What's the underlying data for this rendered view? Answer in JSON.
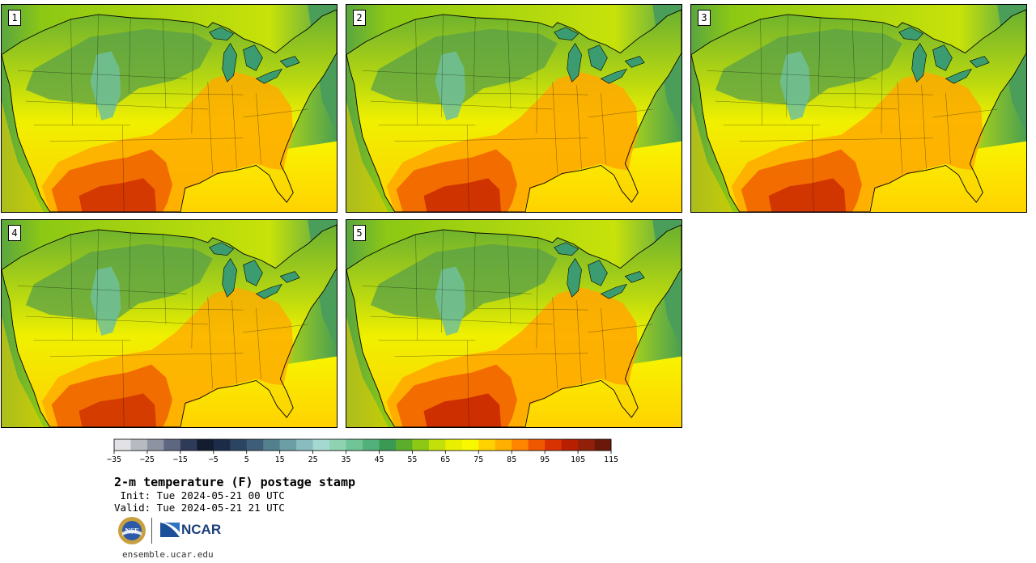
{
  "panels": [
    {
      "label": "1",
      "variant": 0.0
    },
    {
      "label": "2",
      "variant": 0.6
    },
    {
      "label": "3",
      "variant": 0.3
    },
    {
      "label": "4",
      "variant": -0.3
    },
    {
      "label": "5",
      "variant": 0.9
    }
  ],
  "colorbar": {
    "colors": [
      "#e2e2e6",
      "#b8bac2",
      "#8e93a2",
      "#5e6680",
      "#2e3a58",
      "#141c30",
      "#1c2c48",
      "#2a4462",
      "#3e5e78",
      "#52808c",
      "#6c9ea6",
      "#88bcbe",
      "#a6d8d2",
      "#8ed2b2",
      "#70c496",
      "#52b07a",
      "#3a9a54",
      "#5aae2c",
      "#8cc814",
      "#c4e00a",
      "#e8f000",
      "#f8f800",
      "#ffd200",
      "#ffb000",
      "#ff8400",
      "#f05800",
      "#d83200",
      "#b81e00",
      "#902008",
      "#6a1808"
    ],
    "tick_labels": [
      "−35",
      "−25",
      "−15",
      "−5",
      "5",
      "15",
      "25",
      "35",
      "45",
      "55",
      "65",
      "75",
      "85",
      "95",
      "105",
      "115"
    ]
  },
  "text": {
    "title": "2-m temperature (F) postage stamp",
    "init": " Init: Tue 2024-05-21 00 UTC",
    "valid": "Valid: Tue 2024-05-21 21 UTC",
    "url": "ensemble.ucar.edu",
    "ncar": "NCAR",
    "nsf": "NSF"
  }
}
